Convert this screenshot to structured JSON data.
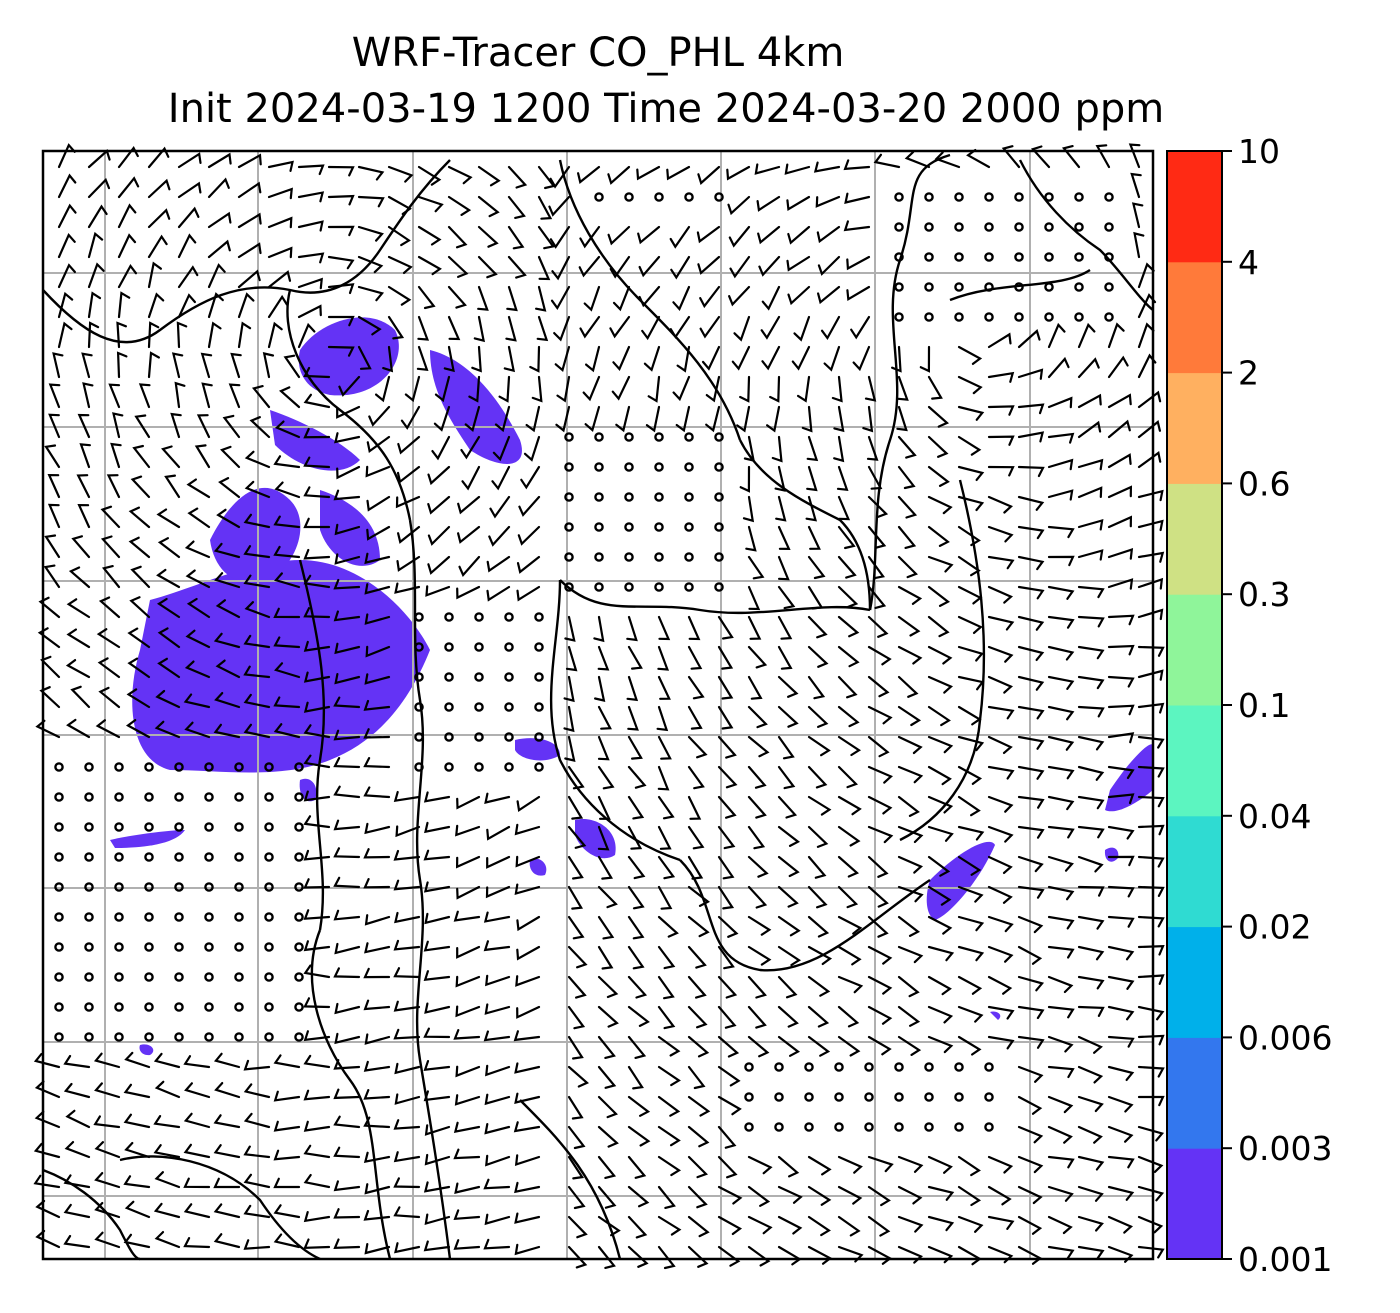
{
  "chart_data": {
    "type": "heatmap",
    "title": "WRF-Tracer CO_PHL 4km",
    "subtitle": "Init 2024-03-19 1200 Time 2024-03-20 2000 ppm",
    "grid": true,
    "colorbar": {
      "placement": "right",
      "levels": [
        "0.001",
        "0.003",
        "0.006",
        "0.02",
        "0.04",
        "0.1",
        "0.3",
        "0.6",
        "2",
        "4",
        "10"
      ],
      "colors": [
        "#6433f5",
        "#3377ee",
        "#00b0ea",
        "#2fdbd2",
        "#5cf5c0",
        "#8ff59a",
        "#cfe184",
        "#ffb060",
        "#ff7a3a",
        "#ff2a14"
      ]
    },
    "tracer_fill_color": "#6433f5",
    "overlays": [
      "wind-barbs",
      "coastlines",
      "state-borders"
    ]
  }
}
